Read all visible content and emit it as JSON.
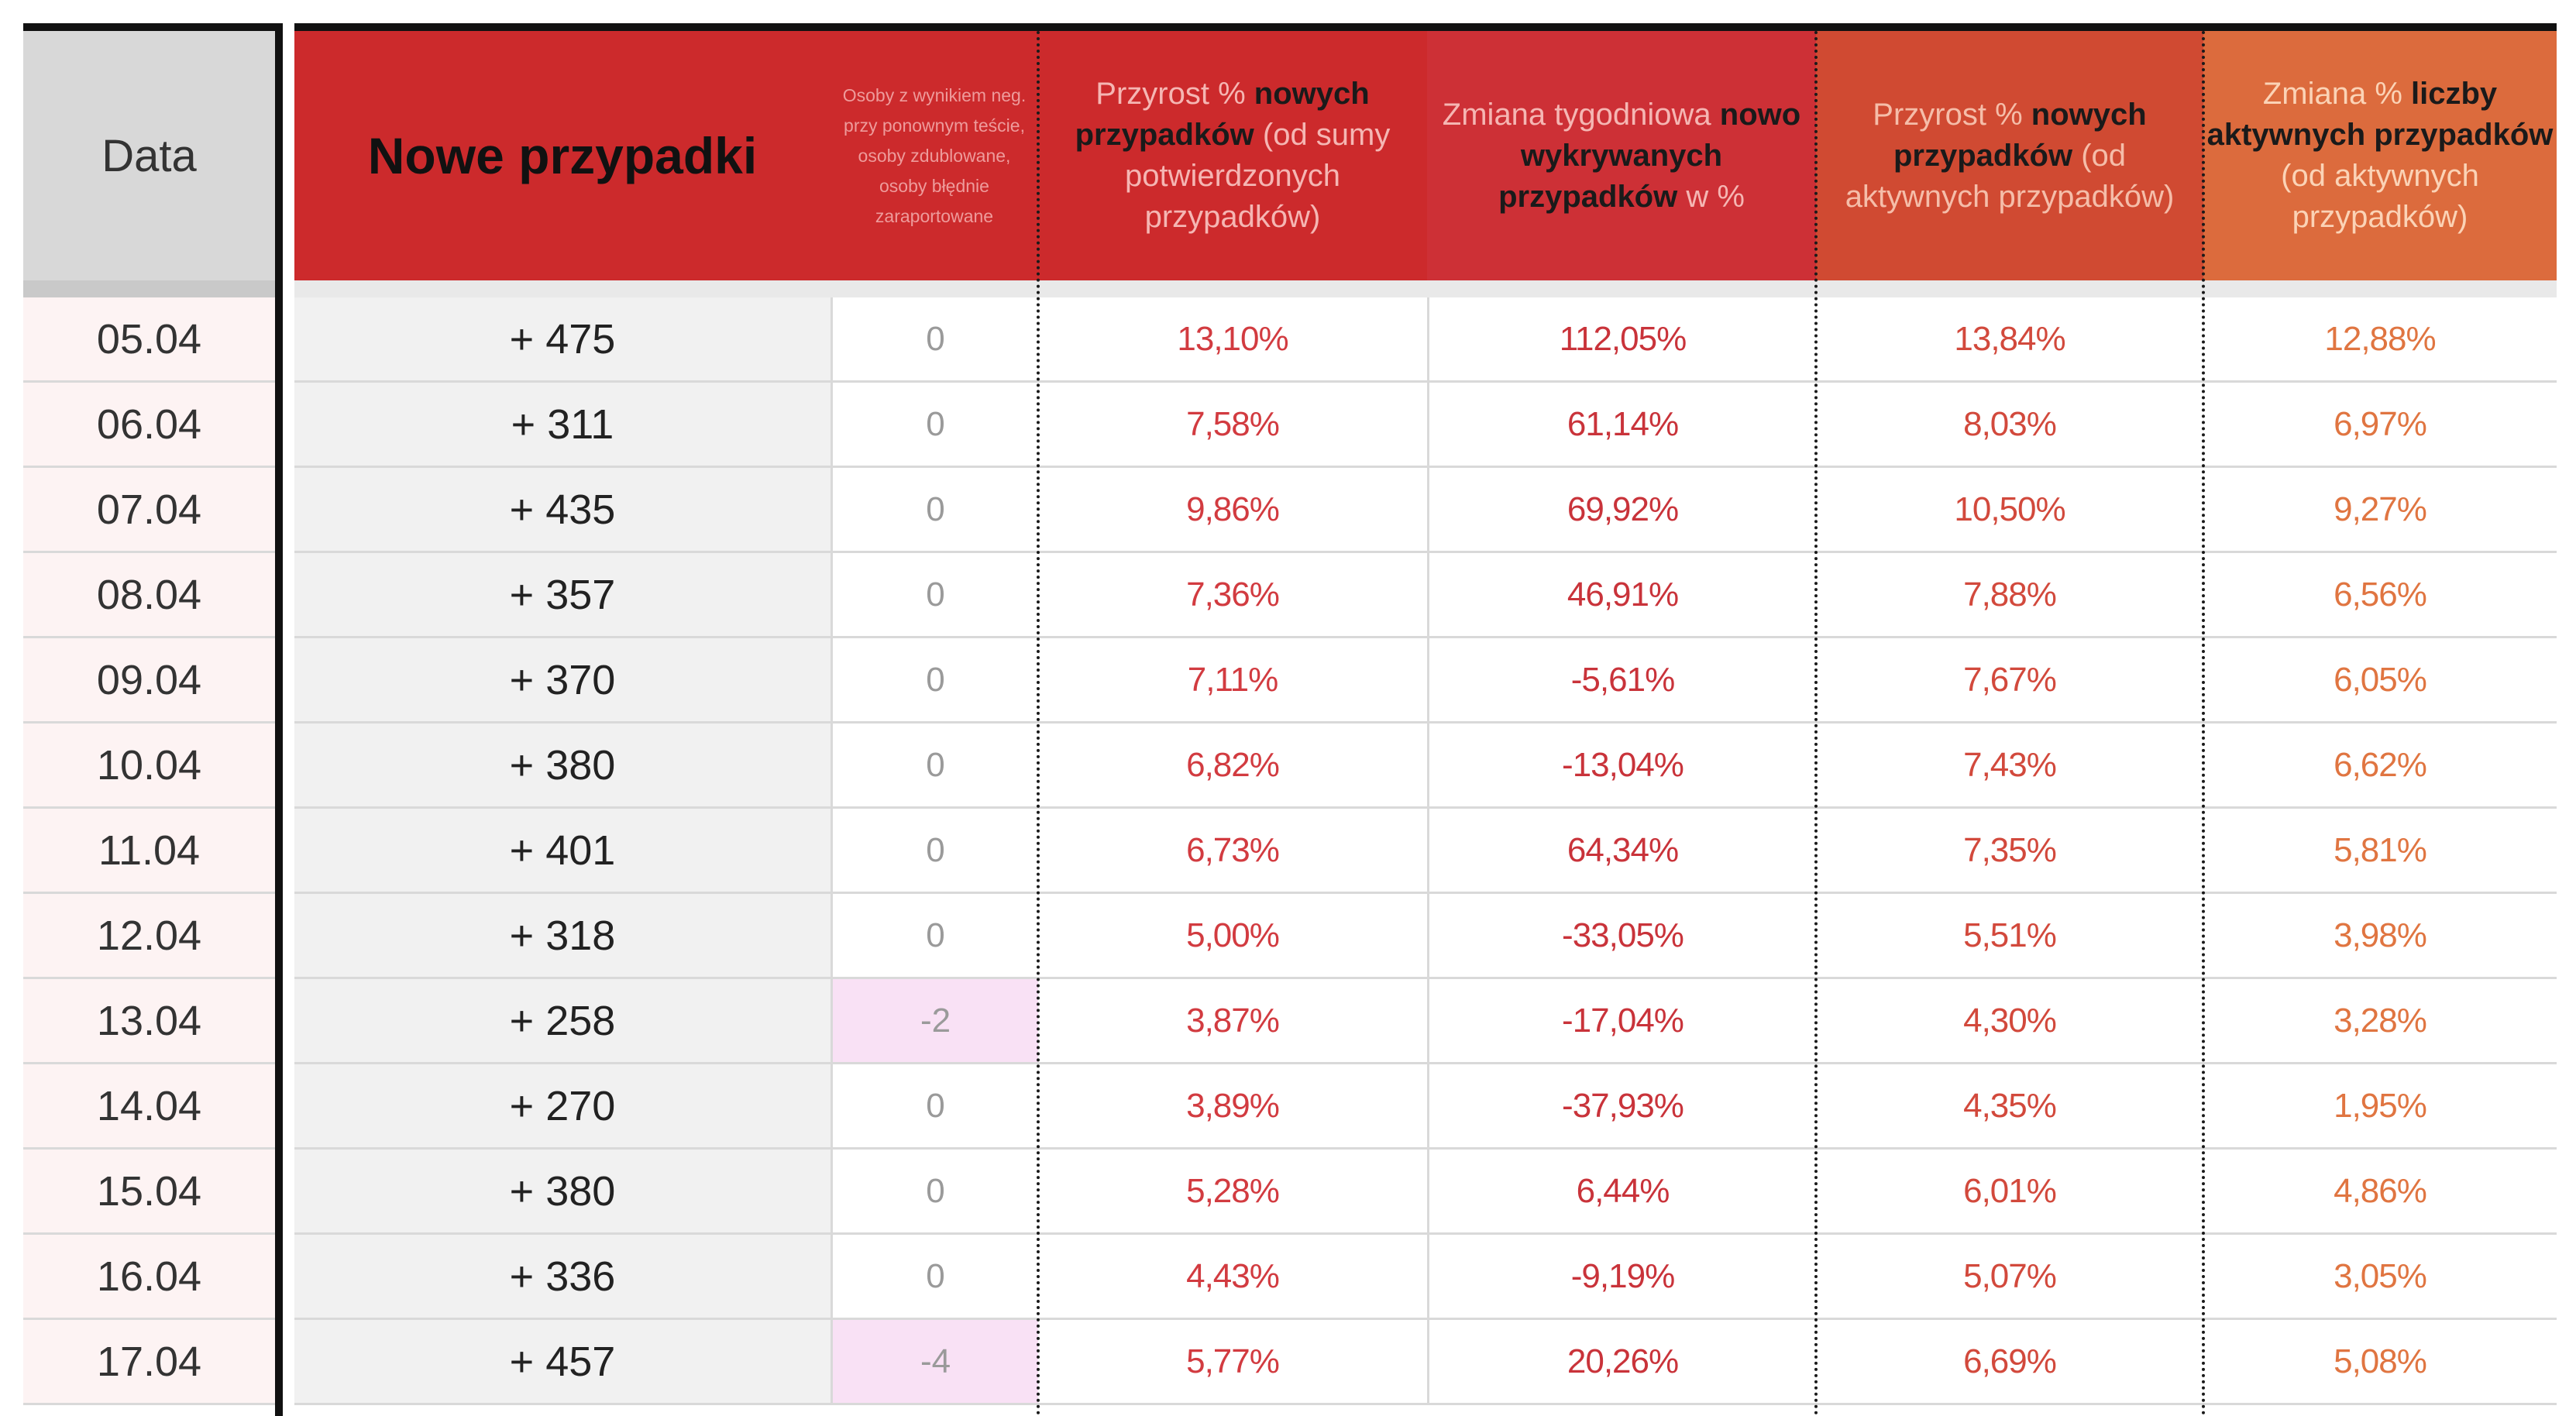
{
  "headers": {
    "date": "Data",
    "new_cases": "Nowe przypadki",
    "negative_retest": "Osoby z wynikiem neg. przy ponownym teście, osoby zdublowane, osoby błędnie zaraportowane",
    "growth_total": {
      "pre": "Przyrost % ",
      "bold": "nowych przypadków",
      "post": " (od sumy potwierdzonych przypadków)"
    },
    "weekly_change": {
      "pre": "Zmiana tygodniowa ",
      "bold": "nowo wykrywanych przypadków",
      "post": " w %"
    },
    "growth_active": {
      "pre": "Przyrost % ",
      "bold": "nowych przypadków",
      "post": " (od aktywnych przypadków)"
    },
    "active_change": {
      "pre": "Zmiana % ",
      "bold": "liczby aktywnych przypadków",
      "post": " (od aktywnych przypadków)"
    }
  },
  "rows": [
    {
      "date": "05.04",
      "new": "+ 475",
      "neg": "0",
      "growth_total": "13,10%",
      "weekly": "112,05%",
      "growth_active": "13,84%",
      "active_change": "12,88%"
    },
    {
      "date": "06.04",
      "new": "+ 311",
      "neg": "0",
      "growth_total": "7,58%",
      "weekly": "61,14%",
      "growth_active": "8,03%",
      "active_change": "6,97%"
    },
    {
      "date": "07.04",
      "new": "+ 435",
      "neg": "0",
      "growth_total": "9,86%",
      "weekly": "69,92%",
      "growth_active": "10,50%",
      "active_change": "9,27%"
    },
    {
      "date": "08.04",
      "new": "+ 357",
      "neg": "0",
      "growth_total": "7,36%",
      "weekly": "46,91%",
      "growth_active": "7,88%",
      "active_change": "6,56%"
    },
    {
      "date": "09.04",
      "new": "+ 370",
      "neg": "0",
      "growth_total": "7,11%",
      "weekly": "-5,61%",
      "growth_active": "7,67%",
      "active_change": "6,05%"
    },
    {
      "date": "10.04",
      "new": "+ 380",
      "neg": "0",
      "growth_total": "6,82%",
      "weekly": "-13,04%",
      "growth_active": "7,43%",
      "active_change": "6,62%"
    },
    {
      "date": "11.04",
      "new": "+ 401",
      "neg": "0",
      "growth_total": "6,73%",
      "weekly": "64,34%",
      "growth_active": "7,35%",
      "active_change": "5,81%"
    },
    {
      "date": "12.04",
      "new": "+ 318",
      "neg": "0",
      "growth_total": "5,00%",
      "weekly": "-33,05%",
      "growth_active": "5,51%",
      "active_change": "3,98%"
    },
    {
      "date": "13.04",
      "new": "+ 258",
      "neg": "-2",
      "neg_highlight": true,
      "growth_total": "3,87%",
      "weekly": "-17,04%",
      "growth_active": "4,30%",
      "active_change": "3,28%"
    },
    {
      "date": "14.04",
      "new": "+ 270",
      "neg": "0",
      "growth_total": "3,89%",
      "weekly": "-37,93%",
      "growth_active": "4,35%",
      "active_change": "1,95%"
    },
    {
      "date": "15.04",
      "new": "+ 380",
      "neg": "0",
      "growth_total": "5,28%",
      "weekly": "6,44%",
      "growth_active": "6,01%",
      "active_change": "4,86%"
    },
    {
      "date": "16.04",
      "new": "+ 336",
      "neg": "0",
      "growth_total": "4,43%",
      "weekly": "-9,19%",
      "growth_active": "5,07%",
      "active_change": "3,05%"
    },
    {
      "date": "17.04",
      "new": "+ 457",
      "neg": "-4",
      "neg_highlight": true,
      "growth_total": "5,77%",
      "weekly": "20,26%",
      "growth_active": "6,69%",
      "active_change": "5,08%"
    }
  ],
  "colors": {
    "header_red": "#cc2a2c",
    "header_orange_red": "#d04a32",
    "header_orange": "#dc6b3d",
    "highlight_pink": "#f9e1f5"
  }
}
